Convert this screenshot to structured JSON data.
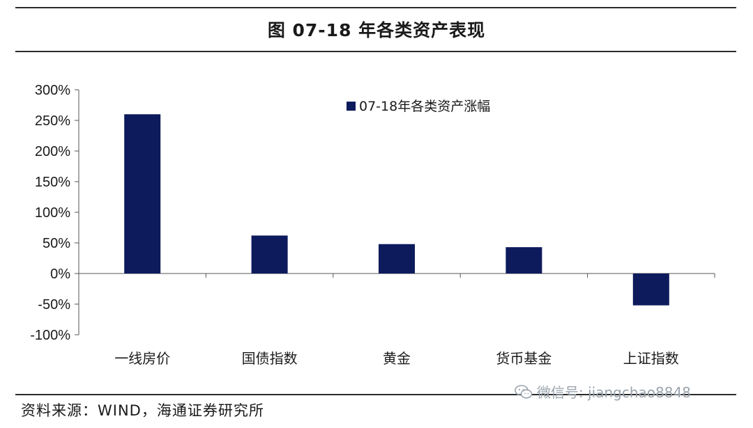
{
  "header": {
    "title": "图  07-18 年各类资产表现"
  },
  "footer": {
    "source": "资料来源：WIND，海通证券研究所"
  },
  "watermark": {
    "text": "微信号: jiangchao8848",
    "icon": "wechat-icon"
  },
  "chart_data": {
    "type": "bar",
    "categories": [
      "一线房价",
      "国债指数",
      "黄金",
      "货币基金",
      "上证指数"
    ],
    "series": [
      {
        "name": "07-18年各类资产涨幅",
        "values": [
          260,
          62,
          48,
          43,
          -52
        ]
      }
    ],
    "ylim": [
      -100,
      300
    ],
    "yticks": [
      -100,
      -50,
      0,
      50,
      100,
      150,
      200,
      250,
      300
    ],
    "ytick_labels": [
      "-100%",
      "-50%",
      "0%",
      "50%",
      "100%",
      "150%",
      "200%",
      "250%",
      "300%"
    ],
    "grid": false,
    "legend": "top-center",
    "bar_color": "#0d1a5c"
  }
}
